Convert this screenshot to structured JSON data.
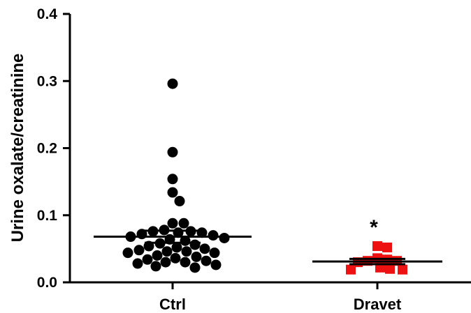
{
  "chart_data": {
    "type": "scatter",
    "title": "",
    "xlabel": "",
    "ylabel": "Urine oxalate/creatinine",
    "ylim": [
      0.0,
      0.4
    ],
    "yticks": [
      "0.0",
      "0.1",
      "0.2",
      "0.3",
      "0.4"
    ],
    "categories": [
      "Ctrl",
      "Dravet"
    ],
    "grid": false,
    "series": [
      {
        "category": "Ctrl",
        "marker": "circle",
        "color": "#000000",
        "mean": 0.068,
        "values": [
          0.296,
          0.194,
          0.154,
          0.134,
          0.121,
          0.088,
          0.088,
          0.078,
          0.076,
          0.076,
          0.074,
          0.074,
          0.072,
          0.07,
          0.068,
          0.066,
          0.064,
          0.062,
          0.058,
          0.056,
          0.054,
          0.052,
          0.05,
          0.048,
          0.046,
          0.046,
          0.044,
          0.044,
          0.04,
          0.038,
          0.036,
          0.034,
          0.032,
          0.03,
          0.03,
          0.028,
          0.026,
          0.024,
          0.022
        ]
      },
      {
        "category": "Dravet",
        "marker": "square",
        "color": "#ee1111",
        "mean": 0.031,
        "values": [
          0.054,
          0.052,
          0.036,
          0.034,
          0.032,
          0.032,
          0.03,
          0.022,
          0.02,
          0.019,
          0.019
        ]
      }
    ],
    "annotations": [
      {
        "text": "*",
        "category": "Dravet"
      }
    ]
  }
}
